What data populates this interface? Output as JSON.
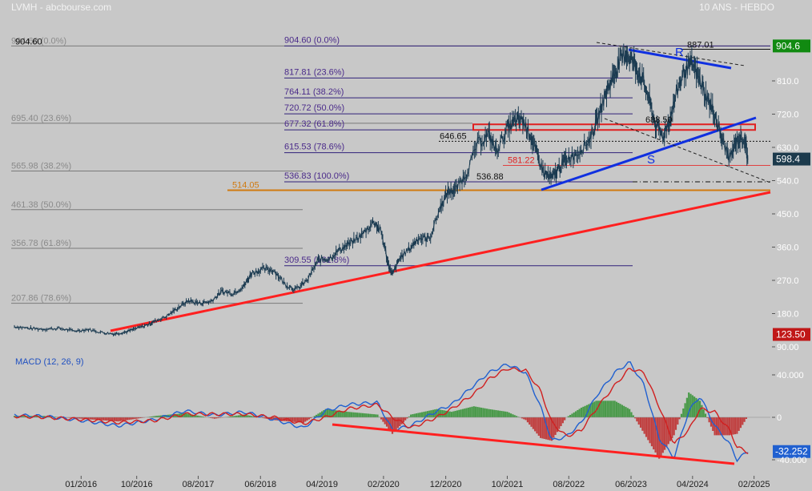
{
  "header": {
    "title": "LVMH - abcbourse.com",
    "period": "10 ANS - HEBDO"
  },
  "colors": {
    "background": "#c8c8c8",
    "price_line": "#1a3a50",
    "fib_left": "#7a7a7a",
    "fib_right": "#30207a",
    "support_line": "#ff2020",
    "channel_line": "#1030e0",
    "macd_line": "#2060d0",
    "signal_line": "#d02020",
    "hist_pos": "#4a9a4a",
    "hist_neg": "#c04040",
    "last_price_box": "#1c3a4c",
    "high_box": "#118a11",
    "low_box": "#c01818",
    "orange_level": "#d07a10"
  },
  "chart_data": [
    {
      "type": "line",
      "title": "LVMH - abcbourse.com",
      "subtitle": "10 ANS - HEBDO",
      "ylim": [
        90,
        930
      ],
      "y_ticks": [
        "810.0",
        "720.0",
        "630.0",
        "540.0",
        "450.0",
        "360.0",
        "270.0",
        "180.0",
        "90.00"
      ],
      "x_ticks": [
        "01/2016",
        "10/2016",
        "08/2017",
        "06/2018",
        "04/2019",
        "02/2020",
        "12/2020",
        "10/2021",
        "08/2022",
        "06/2023",
        "04/2024",
        "02/2025"
      ],
      "x_tick_dates": [
        2016.0,
        2016.75,
        2017.58,
        2018.42,
        2019.25,
        2020.08,
        2020.92,
        2021.75,
        2022.58,
        2023.42,
        2024.25,
        2025.08
      ],
      "x_range": [
        2015.1,
        2025.3
      ],
      "series": [
        {
          "points": [
            [
              2015.1,
              145
            ],
            [
              2015.3,
              140
            ],
            [
              2015.5,
              138
            ],
            [
              2015.7,
              140
            ],
            [
              2015.9,
              133
            ],
            [
              2016.1,
              137
            ],
            [
              2016.3,
              128
            ],
            [
              2016.45,
              125
            ],
            [
              2016.6,
              130
            ],
            [
              2016.75,
              140
            ],
            [
              2016.9,
              150
            ],
            [
              2017.0,
              160
            ],
            [
              2017.15,
              172
            ],
            [
              2017.3,
              195
            ],
            [
              2017.45,
              215
            ],
            [
              2017.6,
              208
            ],
            [
              2017.75,
              213
            ],
            [
              2017.9,
              240
            ],
            [
              2018.05,
              235
            ],
            [
              2018.2,
              255
            ],
            [
              2018.3,
              290
            ],
            [
              2018.45,
              300
            ],
            [
              2018.6,
              298
            ],
            [
              2018.75,
              260
            ],
            [
              2018.9,
              245
            ],
            [
              2019.05,
              270
            ],
            [
              2019.2,
              325
            ],
            [
              2019.35,
              330
            ],
            [
              2019.5,
              355
            ],
            [
              2019.65,
              372
            ],
            [
              2019.8,
              395
            ],
            [
              2019.95,
              430
            ],
            [
              2020.05,
              400
            ],
            [
              2020.15,
              310
            ],
            [
              2020.2,
              285
            ],
            [
              2020.3,
              330
            ],
            [
              2020.45,
              360
            ],
            [
              2020.55,
              385
            ],
            [
              2020.7,
              382
            ],
            [
              2020.85,
              470
            ],
            [
              2020.95,
              510
            ],
            [
              2021.05,
              515
            ],
            [
              2021.2,
              560
            ],
            [
              2021.35,
              640
            ],
            [
              2021.5,
              665
            ],
            [
              2021.6,
              620
            ],
            [
              2021.75,
              680
            ],
            [
              2021.85,
              700
            ],
            [
              2021.95,
              705
            ],
            [
              2022.05,
              670
            ],
            [
              2022.15,
              610
            ],
            [
              2022.25,
              560
            ],
            [
              2022.35,
              545
            ],
            [
              2022.45,
              575
            ],
            [
              2022.55,
              600
            ],
            [
              2022.7,
              615
            ],
            [
              2022.85,
              650
            ],
            [
              2022.95,
              695
            ],
            [
              2023.05,
              760
            ],
            [
              2023.15,
              810
            ],
            [
              2023.25,
              855
            ],
            [
              2023.35,
              887
            ],
            [
              2023.45,
              860
            ],
            [
              2023.55,
              825
            ],
            [
              2023.65,
              770
            ],
            [
              2023.75,
              690
            ],
            [
              2023.85,
              660
            ],
            [
              2023.95,
              710
            ],
            [
              2024.05,
              790
            ],
            [
              2024.15,
              840
            ],
            [
              2024.25,
              855
            ],
            [
              2024.35,
              810
            ],
            [
              2024.45,
              760
            ],
            [
              2024.55,
              720
            ],
            [
              2024.65,
              650
            ],
            [
              2024.75,
              600
            ],
            [
              2024.85,
              650
            ],
            [
              2024.95,
              655
            ],
            [
              2025.0,
              598
            ]
          ]
        }
      ],
      "labels": {
        "high_left": "904.60",
        "pivot_646": "646.65",
        "pivot_536": "536.88",
        "pivot_688": "688.50",
        "pivot_887": "887.01",
        "level_581": "581.22",
        "level_514": "514.05",
        "pattern_R": "R",
        "pattern_S": "S"
      },
      "fib_left": [
        {
          "label": "904.60  (0.0%)",
          "value": 904.6
        },
        {
          "label": "695.40  (23.6%)",
          "value": 695.4
        },
        {
          "label": "565.98  (38.2%)",
          "value": 565.98
        },
        {
          "label": "461.38  (50.0%)",
          "value": 461.38
        },
        {
          "label": "356.78  (61.8%)",
          "value": 356.78
        },
        {
          "label": "207.86  (78.6%)",
          "value": 207.86
        }
      ],
      "fib_right": [
        {
          "label": "904.60  (0.0%)",
          "value": 904.6
        },
        {
          "label": "817.81  (23.6%)",
          "value": 817.81
        },
        {
          "label": "764.11  (38.2%)",
          "value": 764.11
        },
        {
          "label": "720.72  (50.0%)",
          "value": 720.72
        },
        {
          "label": "677.32  (61.8%)",
          "value": 677.32
        },
        {
          "label": "615.53  (78.6%)",
          "value": 615.53
        },
        {
          "label": "536.83  (100.0%)",
          "value": 536.83
        },
        {
          "label": "309.55  (161.8%)",
          "value": 309.55
        }
      ],
      "price_boxes": [
        {
          "label": "904.6",
          "value": 904.6,
          "kind": "high"
        },
        {
          "label": "598.4",
          "value": 598.4,
          "kind": "last"
        },
        {
          "label": "123.50",
          "value": 123.5,
          "kind": "low"
        }
      ]
    },
    {
      "type": "line",
      "title": "MACD (12, 26, 9)",
      "ylim": [
        -47,
        52
      ],
      "y_ticks": [
        "40.000",
        "0",
        "-40.000"
      ],
      "last_value": "-32.252",
      "series": [
        {
          "name": "MACD",
          "points": [
            [
              2015.1,
              2
            ],
            [
              2015.5,
              1
            ],
            [
              2016.0,
              -3
            ],
            [
              2016.5,
              -8
            ],
            [
              2017.0,
              -2
            ],
            [
              2017.4,
              6
            ],
            [
              2017.8,
              2
            ],
            [
              2018.2,
              5
            ],
            [
              2018.6,
              -2
            ],
            [
              2019.0,
              -10
            ],
            [
              2019.3,
              6
            ],
            [
              2019.6,
              12
            ],
            [
              2020.0,
              14
            ],
            [
              2020.2,
              -12
            ],
            [
              2020.45,
              -8
            ],
            [
              2020.8,
              6
            ],
            [
              2021.0,
              12
            ],
            [
              2021.3,
              30
            ],
            [
              2021.5,
              42
            ],
            [
              2021.75,
              50
            ],
            [
              2022.0,
              42
            ],
            [
              2022.2,
              10
            ],
            [
              2022.35,
              -22
            ],
            [
              2022.55,
              -18
            ],
            [
              2022.75,
              -5
            ],
            [
              2022.95,
              20
            ],
            [
              2023.2,
              42
            ],
            [
              2023.4,
              52
            ],
            [
              2023.6,
              30
            ],
            [
              2023.8,
              -20
            ],
            [
              2024.0,
              -38
            ],
            [
              2024.2,
              6
            ],
            [
              2024.35,
              20
            ],
            [
              2024.55,
              -8
            ],
            [
              2024.75,
              -25
            ],
            [
              2024.85,
              -40
            ],
            [
              2025.0,
              -32
            ]
          ]
        },
        {
          "name": "Signal",
          "points": [
            [
              2015.1,
              1
            ],
            [
              2015.5,
              0
            ],
            [
              2016.0,
              -2
            ],
            [
              2016.5,
              -5
            ],
            [
              2017.0,
              -3
            ],
            [
              2017.4,
              3
            ],
            [
              2017.8,
              3
            ],
            [
              2018.2,
              3
            ],
            [
              2018.6,
              0
            ],
            [
              2019.0,
              -6
            ],
            [
              2019.3,
              0
            ],
            [
              2019.6,
              8
            ],
            [
              2020.0,
              12
            ],
            [
              2020.2,
              0
            ],
            [
              2020.45,
              -10
            ],
            [
              2020.8,
              0
            ],
            [
              2021.0,
              8
            ],
            [
              2021.3,
              22
            ],
            [
              2021.5,
              36
            ],
            [
              2021.75,
              46
            ],
            [
              2022.0,
              44
            ],
            [
              2022.2,
              25
            ],
            [
              2022.35,
              -5
            ],
            [
              2022.55,
              -18
            ],
            [
              2022.75,
              -12
            ],
            [
              2022.95,
              8
            ],
            [
              2023.2,
              30
            ],
            [
              2023.4,
              46
            ],
            [
              2023.6,
              42
            ],
            [
              2023.8,
              10
            ],
            [
              2024.0,
              -25
            ],
            [
              2024.2,
              -12
            ],
            [
              2024.35,
              8
            ],
            [
              2024.55,
              5
            ],
            [
              2024.75,
              -12
            ],
            [
              2024.85,
              -28
            ],
            [
              2025.0,
              -33
            ]
          ]
        }
      ]
    }
  ]
}
